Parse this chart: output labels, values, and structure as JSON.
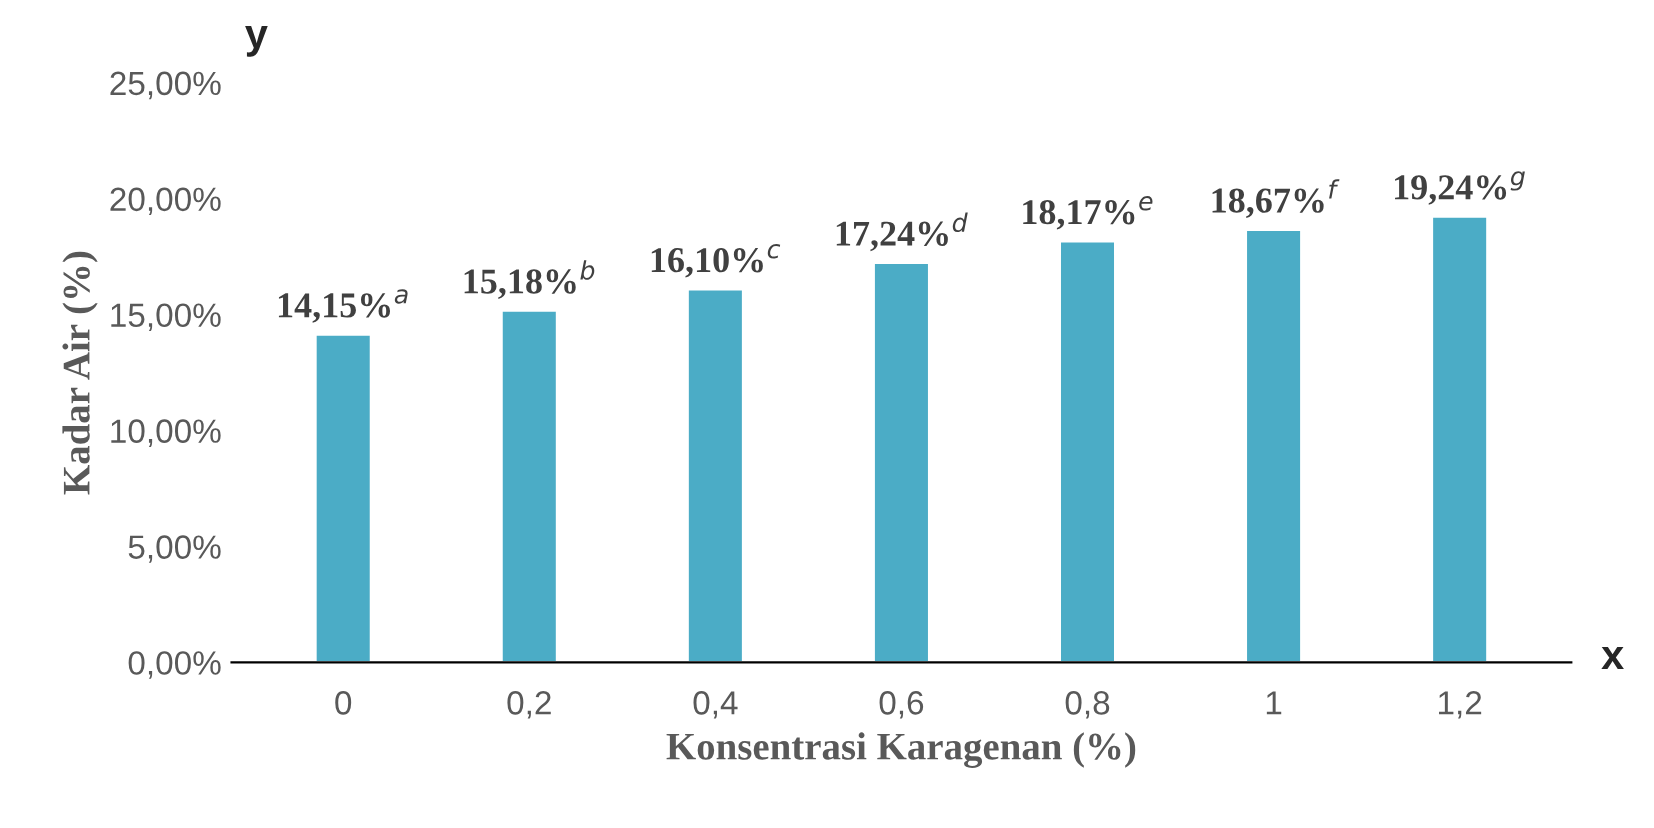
{
  "chart_data": {
    "type": "bar",
    "xlabel": "Konsentrasi Karagenan (%)",
    "ylabel": "Kadar Air (%)",
    "categories": [
      "0",
      "0,2",
      "0,4",
      "0,6",
      "0,8",
      "1",
      "1,2"
    ],
    "values": [
      14.15,
      15.18,
      16.1,
      17.24,
      18.17,
      18.67,
      19.24
    ],
    "value_labels": [
      "14,15%$^{a}$",
      "15,18%$^{b}$",
      "16,10%$^{c}$",
      "17,24%$^{d}$",
      "18,17%$^{e}$",
      "18,67%$^{f}$",
      "19,24%$^{g}$"
    ],
    "color": "#4bacc6",
    "ylim": [
      0,
      25
    ],
    "yticks": [
      {
        "value": 0,
        "label": "0,00%"
      },
      {
        "value": 5,
        "label": "5,00%"
      },
      {
        "value": 10,
        "label": "10,00%"
      },
      {
        "value": 15,
        "label": "15,00%"
      },
      {
        "value": 20,
        "label": "20,00%"
      },
      {
        "value": 25,
        "label": "25,00%"
      }
    ],
    "grid": false,
    "legend": false,
    "annotations": [
      "y",
      "x"
    ]
  }
}
